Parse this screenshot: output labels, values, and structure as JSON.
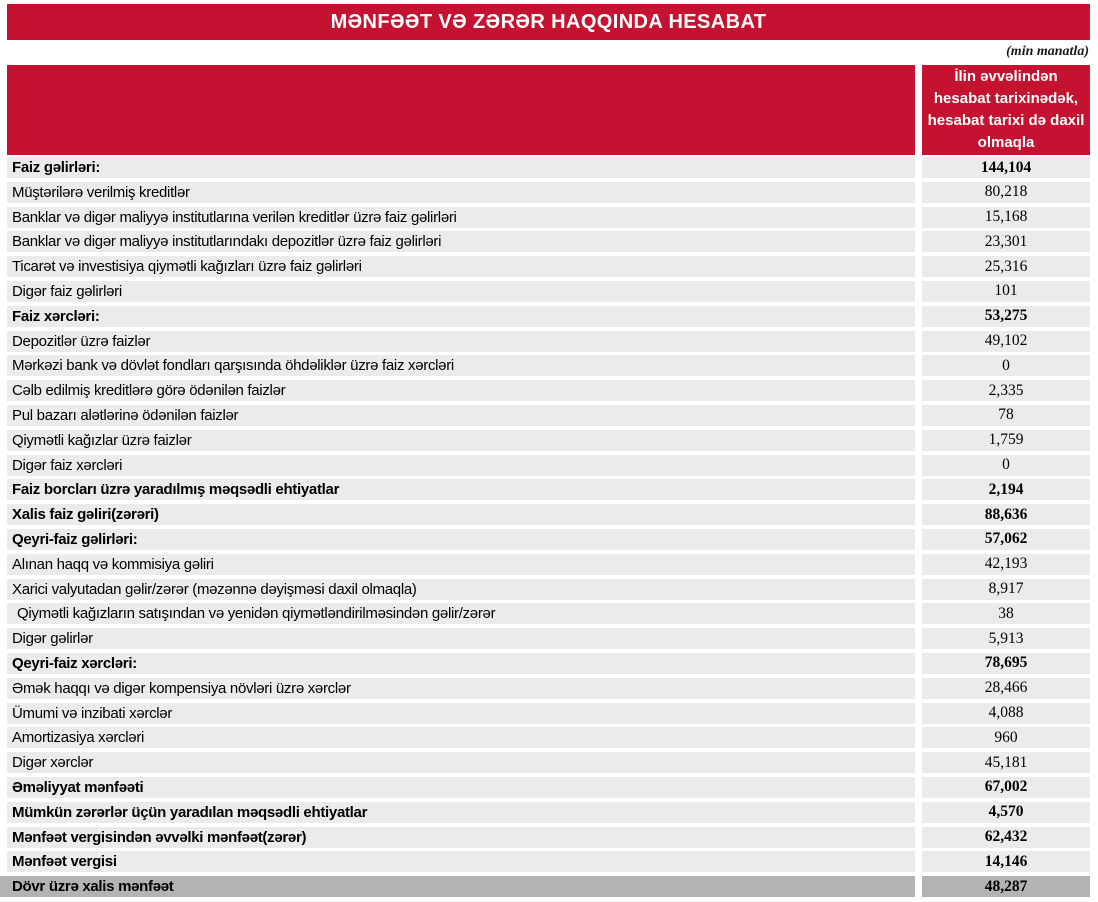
{
  "report": {
    "title": "MƏNFƏƏT VƏ ZƏRƏR HAQQINDA HESABAT",
    "unit_note": "(min manatla)",
    "colors": {
      "accent_red": "#C41230",
      "row_background": "#EBEBEB",
      "final_row_background": "#B3B3B3",
      "header_text": "#FFFFFF",
      "body_text": "#000000"
    },
    "table": {
      "value_column_header": "İlin əvvəlindən hesabat tarixinədək, hesabat tarixi də daxil olmaqla",
      "rows": [
        {
          "label": "Faiz gəlirləri:",
          "value": "144,104",
          "bold": true,
          "indent": false,
          "final": false
        },
        {
          "label": "Müştərilərə verilmiş kreditlər",
          "value": "80,218",
          "bold": false,
          "indent": false,
          "final": false
        },
        {
          "label": "Banklar və digər maliyyə institutlarına verilən kreditlər üzrə faiz gəlirləri",
          "value": "15,168",
          "bold": false,
          "indent": false,
          "final": false
        },
        {
          "label": "Banklar və digər maliyyə institutlarındakı depozitlər üzrə faiz gəlirləri",
          "value": "23,301",
          "bold": false,
          "indent": false,
          "final": false
        },
        {
          "label": "Ticarət və investisiya qiymətli kağızları üzrə faiz gəlirləri",
          "value": "25,316",
          "bold": false,
          "indent": false,
          "final": false
        },
        {
          "label": "Digər faiz gəlirləri",
          "value": "101",
          "bold": false,
          "indent": false,
          "final": false
        },
        {
          "label": "Faiz xərcləri:",
          "value": "53,275",
          "bold": true,
          "indent": false,
          "final": false
        },
        {
          "label": "Depozitlər üzrə faizlər",
          "value": "49,102",
          "bold": false,
          "indent": false,
          "final": false
        },
        {
          "label": "Mərkəzi bank və dövlət fondları qarşısında öhdəliklər üzrə faiz xərcləri",
          "value": "0",
          "bold": false,
          "indent": false,
          "final": false
        },
        {
          "label": "Cəlb edilmiş kreditlərə görə ödənilən faizlər",
          "value": "2,335",
          "bold": false,
          "indent": false,
          "final": false
        },
        {
          "label": "Pul bazarı alətlərinə ödənilən faizlər",
          "value": "78",
          "bold": false,
          "indent": false,
          "final": false
        },
        {
          "label": "Qiymətli kağızlar üzrə faizlər",
          "value": "1,759",
          "bold": false,
          "indent": false,
          "final": false
        },
        {
          "label": "Digər faiz xərcləri",
          "value": "0",
          "bold": false,
          "indent": false,
          "final": false
        },
        {
          "label": "Faiz borcları üzrə yaradılmış məqsədli ehtiyatlar",
          "value": "2,194",
          "bold": true,
          "indent": false,
          "final": false
        },
        {
          "label": "Xalis faiz gəliri(zərəri)",
          "value": "88,636",
          "bold": true,
          "indent": false,
          "final": false
        },
        {
          "label": "Qeyri-faiz gəlirləri:",
          "value": "57,062",
          "bold": true,
          "indent": false,
          "final": false
        },
        {
          "label": "Alınan haqq və kommisiya gəliri",
          "value": "42,193",
          "bold": false,
          "indent": false,
          "final": false
        },
        {
          "label": "Xarici valyutadan gəlir/zərər (məzənnə dəyişməsi daxil olmaqla)",
          "value": "8,917",
          "bold": false,
          "indent": false,
          "final": false
        },
        {
          "label": " Qiymətli kağızların satışından və yenidən qiymətləndirilməsindən gəlir/zərər",
          "value": "38",
          "bold": false,
          "indent": true,
          "final": false
        },
        {
          "label": "Digər gəlirlər",
          "value": "5,913",
          "bold": false,
          "indent": false,
          "final": false
        },
        {
          "label": "Qeyri-faiz xərcləri:",
          "value": "78,695",
          "bold": true,
          "indent": false,
          "final": false
        },
        {
          "label": "Əmək haqqı və digər kompensiya növləri üzrə xərclər",
          "value": "28,466",
          "bold": false,
          "indent": false,
          "final": false
        },
        {
          "label": "Ümumi və inzibati xərclər",
          "value": "4,088",
          "bold": false,
          "indent": false,
          "final": false
        },
        {
          "label": "Amortizasiya xərcləri",
          "value": "960",
          "bold": false,
          "indent": false,
          "final": false
        },
        {
          "label": "Digər xərclər",
          "value": "45,181",
          "bold": false,
          "indent": false,
          "final": false
        },
        {
          "label": "Əməliyyat mənfəəti",
          "value": "67,002",
          "bold": true,
          "indent": false,
          "final": false
        },
        {
          "label": "Mümkün zərərlər üçün yaradılan məqsədli ehtiyatlar",
          "value": "4,570",
          "bold": true,
          "indent": false,
          "final": false
        },
        {
          "label": "Mənfəət vergisindən əvvəlki mənfəət(zərər)",
          "value": "62,432",
          "bold": true,
          "indent": false,
          "final": false
        },
        {
          "label": "Mənfəət vergisi",
          "value": "14,146",
          "bold": true,
          "indent": false,
          "final": false
        },
        {
          "label": "Dövr üzrə xalis mənfəət",
          "value": "48,287",
          "bold": true,
          "indent": false,
          "final": true
        }
      ]
    }
  }
}
